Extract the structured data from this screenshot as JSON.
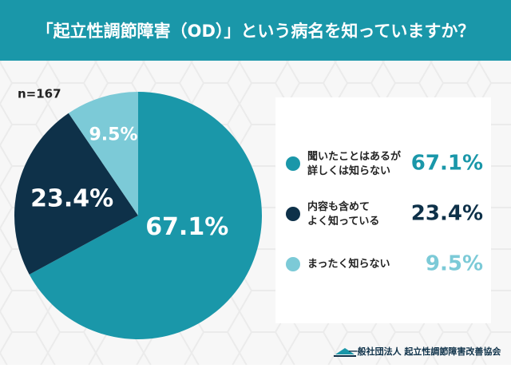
{
  "chart_data": {
    "type": "pie",
    "title": "「起立性調節障害（OD）」という病名を知っていますか？",
    "note": "n=167",
    "categories": [
      "聞いたことはあるが\n詳しくは知らない",
      "内容も含めて\nよく知っている",
      "まったく知らない"
    ],
    "values": [
      67.1,
      23.4,
      9.5
    ],
    "value_labels": [
      "67.1%",
      "23.4%",
      "9.5%"
    ],
    "colors": [
      "#1a97a9",
      "#0e3149",
      "#7ccad7"
    ],
    "footer": "一般社団法人 起立性調節障害改善協会"
  }
}
